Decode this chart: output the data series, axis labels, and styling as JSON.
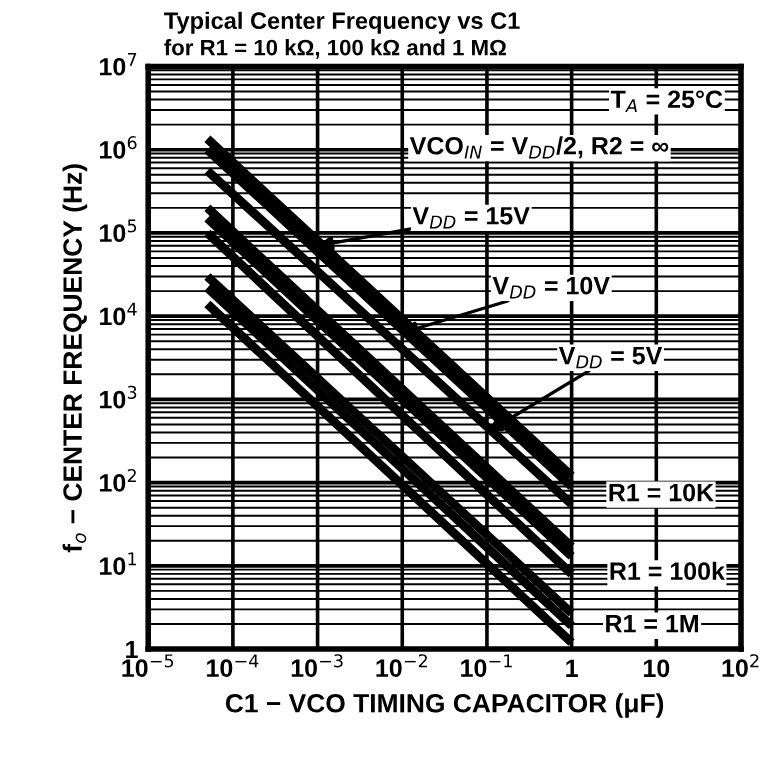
{
  "chart_data": {
    "type": "line",
    "title": "Typical Center Frequency vs C1",
    "subtitle": "for R1 = 10 kΩ, 100 kΩ and 1 MΩ",
    "xlabel": "C1 − VCO TIMING CAPACITOR (μF)",
    "ylabel": "f$_{o}$ − CENTER FREQUENCY (Hz)",
    "log": "xy",
    "grid": true,
    "marker": "none",
    "line_style": "solid",
    "xlim": [
      1e-05,
      100
    ],
    "ylim": [
      1,
      10000000
    ],
    "xticks": [
      {
        "value": 1e-05,
        "label": "10$^{−5}$"
      },
      {
        "value": 0.0001,
        "label": "10$^{−4}$"
      },
      {
        "value": 0.001,
        "label": "10$^{−3}$"
      },
      {
        "value": 0.01,
        "label": "10$^{−2}$"
      },
      {
        "value": 0.1,
        "label": "10$^{−1}$"
      },
      1,
      10,
      {
        "value": 100,
        "label": "10$^{2}$"
      }
    ],
    "yticks": [
      1,
      {
        "value": 10,
        "label": "10$^{1}$"
      },
      {
        "value": 100,
        "label": "10$^{2}$"
      },
      {
        "value": 1000,
        "label": "10$^{3}$"
      },
      {
        "value": 10000,
        "label": "10$^{4}$"
      },
      {
        "value": 100000,
        "label": "10$^{5}$"
      },
      {
        "value": 1000000,
        "label": "10$^{6}$"
      },
      {
        "value": 10000000,
        "label": "10$^{7}$"
      }
    ],
    "x": [
      5e-05,
      1
    ],
    "series": [
      {
        "color": "#000000",
        "values": [
          1350000,
          120
        ]
      },
      {
        "color": "#000000",
        "values": [
          1000000,
          90
        ]
      },
      {
        "color": "#000000",
        "values": [
          560000,
          55
        ]
      },
      {
        "color": "#000000",
        "values": [
          200000,
          17
        ]
      },
      {
        "color": "#000000",
        "values": [
          150000,
          13
        ]
      },
      {
        "color": "#000000",
        "values": [
          100000,
          8
        ]
      },
      {
        "color": "#000000",
        "values": [
          30000,
          2.7
        ]
      },
      {
        "color": "#000000",
        "values": [
          22000,
          1.9
        ]
      },
      {
        "color": "#000000",
        "values": [
          14000,
          1.2
        ]
      }
    ],
    "annotations": [
      "T$_{A}$ = 25°C",
      "VCO$_{IN}$ = V$_{DD}$/2, R2 = ∞",
      {
        "text": "V$_{DD}$ = 15V",
        "x": 0.001,
        "y": 70000
      },
      {
        "text": "V$_{DD}$ = 10V",
        "x": 0.01,
        "y": 6300
      },
      {
        "text": "V$_{DD}$ = 5V",
        "x": 0.1,
        "y": 400
      },
      "R1 = 10K",
      "R1 = 100k",
      "R1 = 1M"
    ]
  }
}
